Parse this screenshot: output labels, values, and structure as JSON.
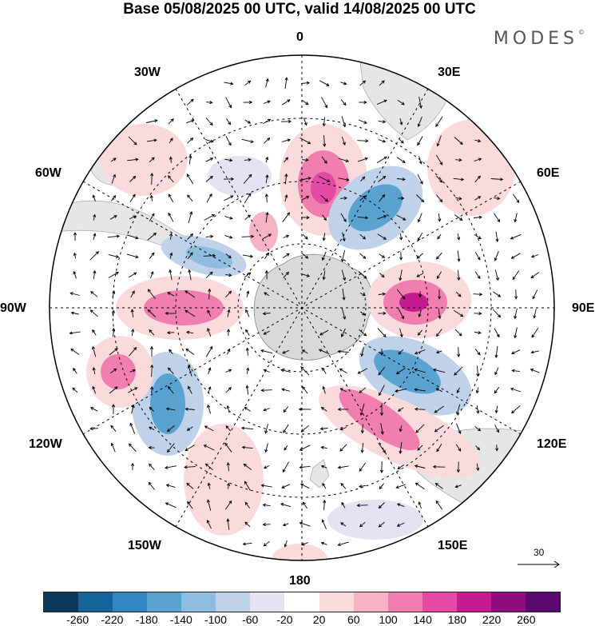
{
  "title": "Base 05/08/2025 00 UTC, valid 14/08/2025 00 UTC",
  "brand": "MODES",
  "brand_mark": "©",
  "longitude_labels": {
    "top": "0",
    "bottom": "180",
    "left": "90W",
    "right": "90E",
    "w30": "30W",
    "e30": "30E",
    "w60": "60W",
    "e60": "60E",
    "w120": "120W",
    "e120": "120E",
    "w150": "150W",
    "e150": "150E"
  },
  "reference_vector": {
    "label": "30"
  },
  "colorbar": {
    "colors": [
      "#0b3a5e",
      "#14639b",
      "#2f86c0",
      "#5aa3d1",
      "#8fbde0",
      "#c0d1ea",
      "#e4e3f1",
      "#ffffff",
      "#fbdadc",
      "#f6b3c3",
      "#f07fb0",
      "#e34aa3",
      "#c41b8f",
      "#8e0e7f",
      "#5a0a6e"
    ],
    "tick_labels": [
      "-260",
      "-220",
      "-180",
      "-140",
      "-100",
      "-60",
      "-20",
      "20",
      "60",
      "100",
      "140",
      "180",
      "220",
      "260"
    ]
  },
  "anomaly_centers": [
    {
      "sign": "positive",
      "strength": "strong",
      "lon": "10E"
    },
    {
      "sign": "negative",
      "strength": "strong",
      "lon": "45E"
    },
    {
      "sign": "positive",
      "strength": "strong",
      "lon": "90E"
    },
    {
      "sign": "negative",
      "strength": "strong",
      "lon": "115E"
    },
    {
      "sign": "positive",
      "strength": "strong",
      "lon": "150E"
    },
    {
      "sign": "negative",
      "strength": "strong",
      "lon": "120W"
    },
    {
      "sign": "positive",
      "strength": "moderate",
      "lon": "100W"
    },
    {
      "sign": "positive",
      "strength": "moderate",
      "lon": "85W"
    },
    {
      "sign": "negative",
      "strength": "moderate",
      "lon": "70W"
    }
  ]
}
